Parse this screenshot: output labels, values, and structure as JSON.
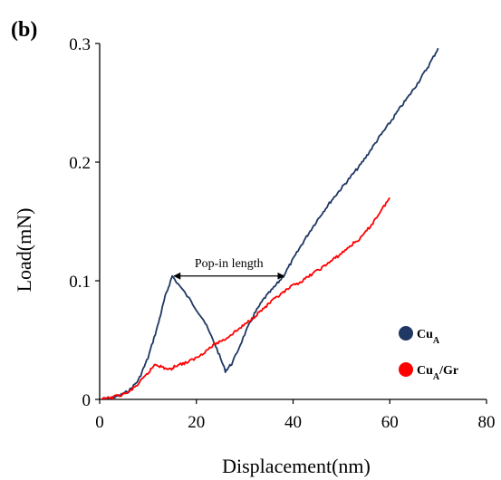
{
  "chart_data": {
    "type": "line",
    "panel_label": "(b)",
    "xlabel": "Displacement(nm)",
    "ylabel": "Load(mN)",
    "xlim": [
      0,
      80
    ],
    "ylim": [
      0,
      0.3
    ],
    "x_ticks": [
      "0",
      "20",
      "40",
      "60",
      "80"
    ],
    "y_ticks": [
      "0",
      "0.1",
      "0.2",
      "0.3"
    ],
    "grid": false,
    "legend_position": "bottom-right",
    "series": [
      {
        "name": "CuA",
        "name_main": "Cu",
        "name_sub": "A",
        "name_suffix": "",
        "color": "#1f3864",
        "points": [
          [
            0.5,
            0.0
          ],
          [
            2,
            0.001
          ],
          [
            4,
            0.003
          ],
          [
            6,
            0.007
          ],
          [
            8,
            0.016
          ],
          [
            10,
            0.035
          ],
          [
            12,
            0.062
          ],
          [
            13.5,
            0.086
          ],
          [
            15,
            0.104
          ],
          [
            18.5,
            0.085
          ],
          [
            21.5,
            0.067
          ],
          [
            24,
            0.045
          ],
          [
            26,
            0.024
          ],
          [
            27.5,
            0.031
          ],
          [
            30,
            0.055
          ],
          [
            32,
            0.072
          ],
          [
            34,
            0.085
          ],
          [
            36,
            0.094
          ],
          [
            38,
            0.104
          ],
          [
            40,
            0.118
          ],
          [
            42,
            0.132
          ],
          [
            44,
            0.145
          ],
          [
            46,
            0.157
          ],
          [
            48,
            0.168
          ],
          [
            50,
            0.178
          ],
          [
            52,
            0.188
          ],
          [
            54,
            0.198
          ],
          [
            56,
            0.21
          ],
          [
            58,
            0.222
          ],
          [
            60,
            0.233
          ],
          [
            62,
            0.245
          ],
          [
            64,
            0.256
          ],
          [
            66,
            0.268
          ],
          [
            68,
            0.281
          ],
          [
            70,
            0.296
          ]
        ]
      },
      {
        "name": "CuA/Gr",
        "name_main": "Cu",
        "name_sub": "A",
        "name_suffix": "/Gr",
        "color": "#ff0000",
        "points": [
          [
            0.5,
            0.0
          ],
          [
            3,
            0.002
          ],
          [
            6,
            0.006
          ],
          [
            8,
            0.013
          ],
          [
            10,
            0.022
          ],
          [
            11.5,
            0.03
          ],
          [
            13,
            0.027
          ],
          [
            14.5,
            0.025
          ],
          [
            16,
            0.029
          ],
          [
            18,
            0.031
          ],
          [
            20,
            0.035
          ],
          [
            22,
            0.041
          ],
          [
            24,
            0.047
          ],
          [
            26,
            0.051
          ],
          [
            28,
            0.057
          ],
          [
            30,
            0.063
          ],
          [
            32,
            0.07
          ],
          [
            34,
            0.077
          ],
          [
            36,
            0.084
          ],
          [
            38,
            0.09
          ],
          [
            40,
            0.096
          ],
          [
            42,
            0.1
          ],
          [
            44,
            0.106
          ],
          [
            46,
            0.111
          ],
          [
            48,
            0.117
          ],
          [
            50,
            0.123
          ],
          [
            52,
            0.13
          ],
          [
            54,
            0.136
          ],
          [
            56,
            0.146
          ],
          [
            58,
            0.158
          ],
          [
            60,
            0.17
          ]
        ]
      }
    ],
    "annotations": [
      {
        "text": "Pop-in length",
        "x_start": 15,
        "x_end": 38.5,
        "y": 0.104
      }
    ]
  }
}
